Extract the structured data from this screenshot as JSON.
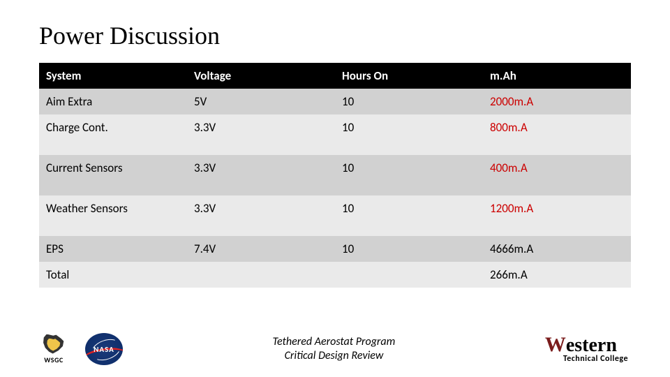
{
  "title": "Power Discussion",
  "table": {
    "columns": [
      "System",
      "Voltage",
      "Hours On",
      "m.Ah"
    ],
    "rows": [
      {
        "cells": [
          "Aim Extra",
          "5V",
          "10",
          "2000m.A"
        ],
        "mah_red": true,
        "band": "dark",
        "tall": false
      },
      {
        "cells": [
          "Charge Cont.",
          "3.3V",
          "10",
          "800m.A"
        ],
        "mah_red": true,
        "band": "light",
        "tall": true
      },
      {
        "cells": [
          "Current Sensors",
          "3.3V",
          "10",
          "400m.A"
        ],
        "mah_red": true,
        "band": "dark",
        "tall": true
      },
      {
        "cells": [
          "Weather Sensors",
          "3.3V",
          "10",
          "1200m.A"
        ],
        "mah_red": true,
        "band": "light",
        "tall": true
      },
      {
        "cells": [
          "EPS",
          "7.4V",
          "10",
          "4666m.A"
        ],
        "mah_red": false,
        "band": "dark",
        "tall": false
      },
      {
        "cells": [
          "Total",
          "",
          "",
          "266m.A"
        ],
        "mah_red": false,
        "band": "light",
        "tall": false
      }
    ],
    "header_bg": "#000000",
    "header_fg": "#ffffff",
    "band_dark": "#d1d1d1",
    "band_light": "#eaeaea",
    "red_color": "#cc0000",
    "font_size": 17
  },
  "footer": {
    "line1": "Tethered Aerostat Program",
    "line2": "Critical Design Review",
    "wsgc_label": "WSGC",
    "nasa_label": "NASA",
    "western_main": "Western",
    "western_sub": "Technical College"
  }
}
